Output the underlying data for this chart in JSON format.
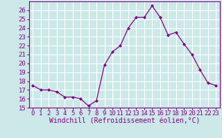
{
  "x": [
    0,
    1,
    2,
    3,
    4,
    5,
    6,
    7,
    8,
    9,
    10,
    11,
    12,
    13,
    14,
    15,
    16,
    17,
    18,
    19,
    20,
    21,
    22,
    23
  ],
  "y": [
    17.5,
    17.0,
    17.0,
    16.8,
    16.2,
    16.2,
    16.0,
    15.2,
    15.8,
    19.8,
    21.3,
    22.0,
    24.0,
    25.2,
    25.2,
    26.5,
    25.2,
    23.2,
    23.5,
    22.2,
    21.0,
    19.3,
    17.8,
    17.5
  ],
  "line_color": "#800080",
  "marker": "D",
  "marker_size": 2.0,
  "bg_color": "#cce8e8",
  "grid_color": "#ffffff",
  "xlabel": "Windchill (Refroidissement éolien,°C)",
  "ylim_min": 15,
  "ylim_max": 27,
  "xlim_min": -0.5,
  "xlim_max": 23.5,
  "yticks": [
    15,
    16,
    17,
    18,
    19,
    20,
    21,
    22,
    23,
    24,
    25,
    26
  ],
  "xticks": [
    0,
    1,
    2,
    3,
    4,
    5,
    6,
    7,
    8,
    9,
    10,
    11,
    12,
    13,
    14,
    15,
    16,
    17,
    18,
    19,
    20,
    21,
    22,
    23
  ],
  "tick_color": "#800080",
  "label_color": "#800080",
  "xlabel_fontsize": 7,
  "tick_fontsize": 6.5,
  "spine_color": "#800080"
}
